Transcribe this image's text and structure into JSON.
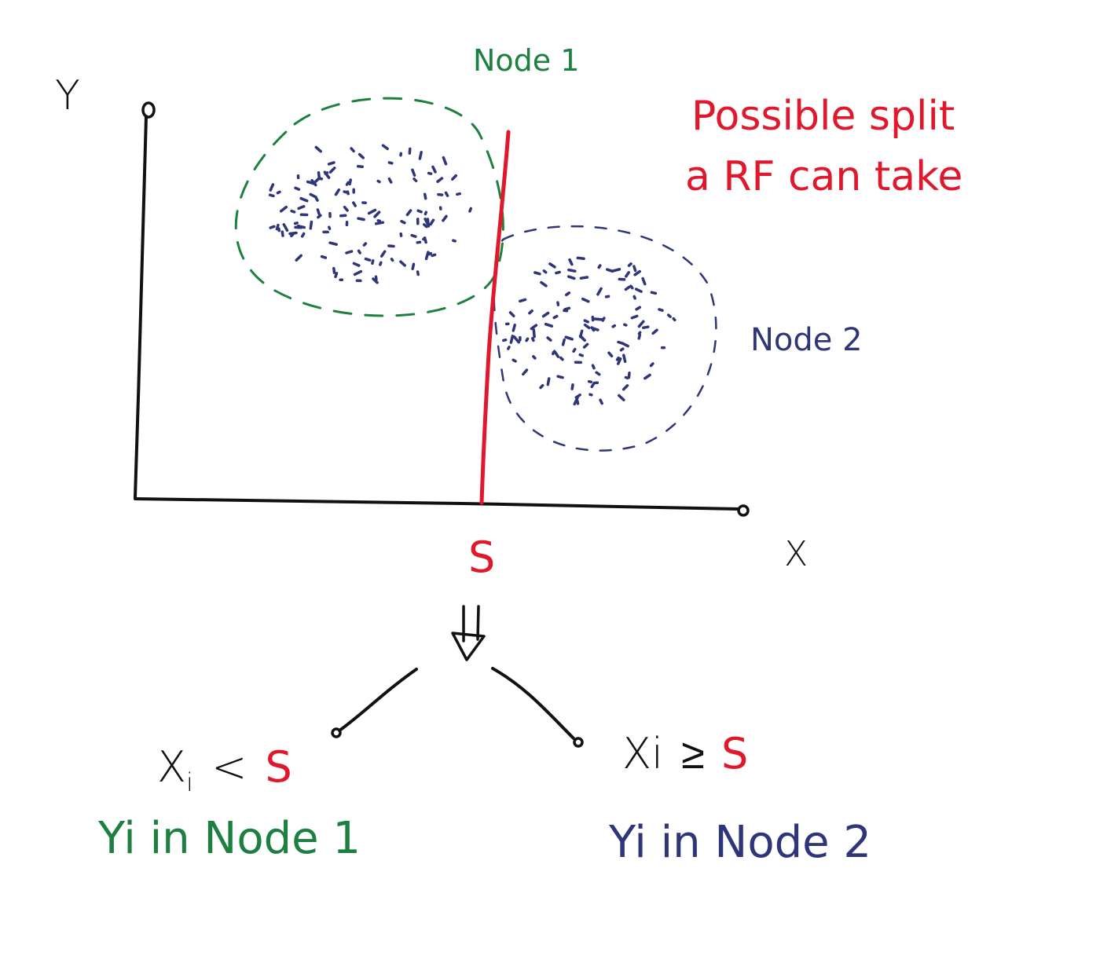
{
  "axes": {
    "y_label": "Y",
    "x_label": "X"
  },
  "node1": {
    "label": "Node 1"
  },
  "node2": {
    "label": "Node 2"
  },
  "split": {
    "annotation_line1": "Possible split",
    "annotation_line2": "a RF can take",
    "threshold_label": "S"
  },
  "tree": {
    "left_condition": {
      "var": "X",
      "sub": "i",
      "op": "<",
      "threshold": "S"
    },
    "right_condition": {
      "var": "Xi",
      "op": "≥",
      "threshold": "S"
    },
    "left_result": "Yi in Node 1",
    "right_result": "Yi in Node 2"
  },
  "colors": {
    "node1": "#1e8040",
    "node2": "#2f3579",
    "split": "#e0182c",
    "ink": "#111111"
  }
}
